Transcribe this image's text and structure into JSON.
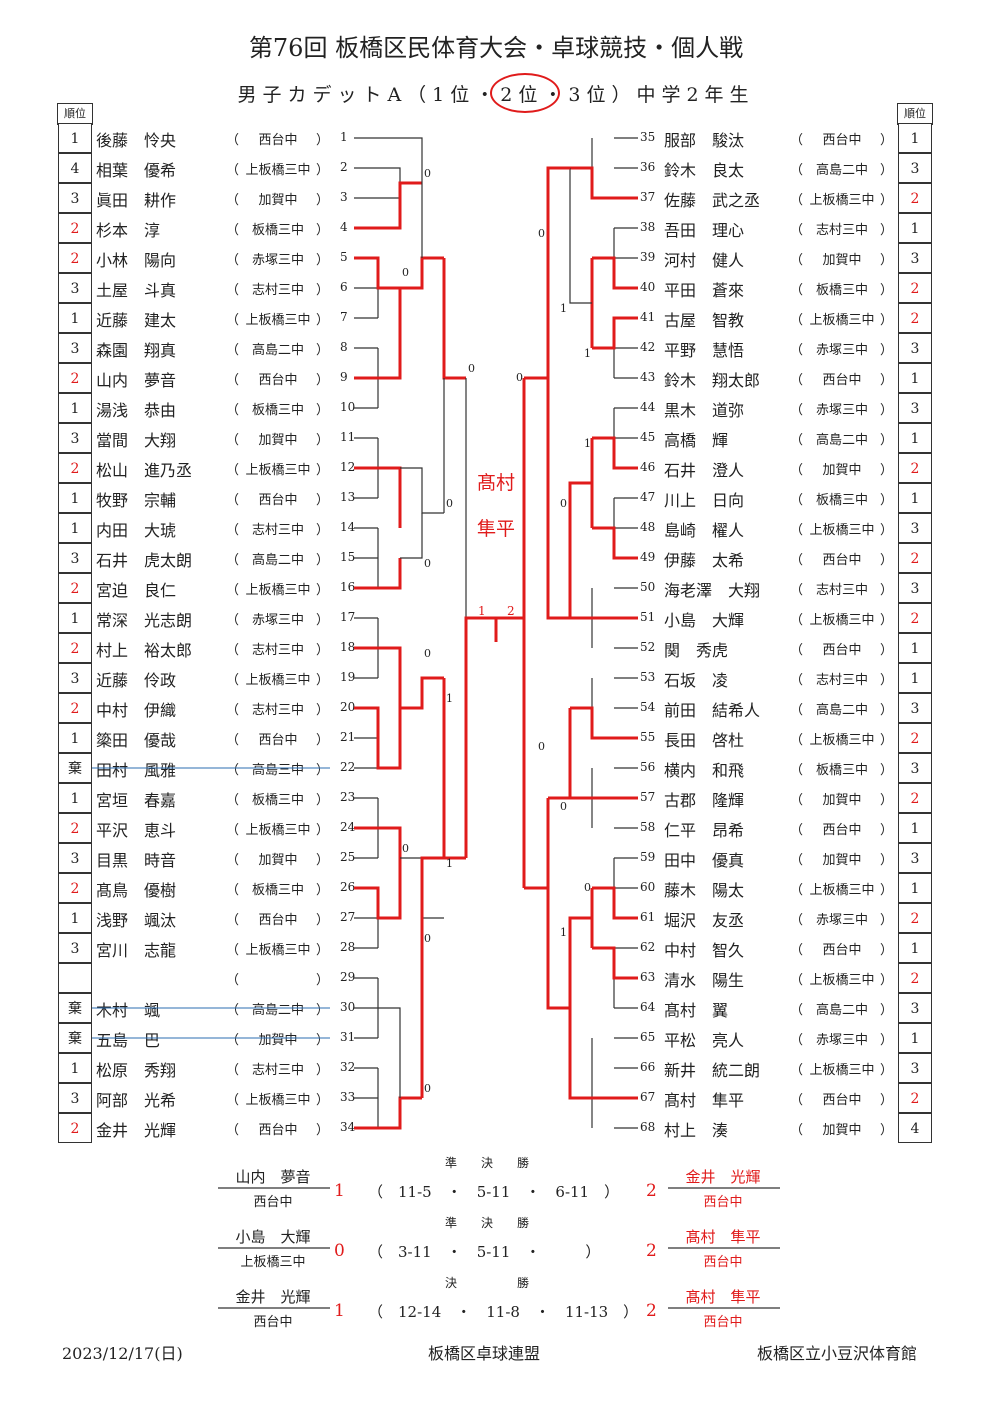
{
  "title": "第76回 板橋区民体育大会・卓球競技・個人戦",
  "subtitle": "男子カデットA（1位・2位・3位）中学2年生",
  "rank_header": "順位",
  "left_players": [
    {
      "num": "1",
      "name": "後藤　怜央",
      "school": "西台中",
      "rank": "1"
    },
    {
      "num": "2",
      "name": "相葉　優希",
      "school": "上板橋三中",
      "rank": "4"
    },
    {
      "num": "3",
      "name": "眞田　耕作",
      "school": "加賀中",
      "rank": "3"
    },
    {
      "num": "4",
      "name": "杉本　淳",
      "school": "板橋三中",
      "rank": "2"
    },
    {
      "num": "5",
      "name": "小林　陽向",
      "school": "赤塚三中",
      "rank": "2"
    },
    {
      "num": "6",
      "name": "土屋　斗真",
      "school": "志村三中",
      "rank": "3"
    },
    {
      "num": "7",
      "name": "近藤　建太",
      "school": "上板橋三中",
      "rank": "1"
    },
    {
      "num": "8",
      "name": "森園　翔真",
      "school": "高島二中",
      "rank": "3"
    },
    {
      "num": "9",
      "name": "山内　夢音",
      "school": "西台中",
      "rank": "2"
    },
    {
      "num": "10",
      "name": "湯浅　恭由",
      "school": "板橋三中",
      "rank": "1"
    },
    {
      "num": "11",
      "name": "當間　大翔",
      "school": "加賀中",
      "rank": "3"
    },
    {
      "num": "12",
      "name": "松山　進乃丞",
      "school": "上板橋三中",
      "rank": "2"
    },
    {
      "num": "13",
      "name": "牧野　宗輔",
      "school": "西台中",
      "rank": "1"
    },
    {
      "num": "14",
      "name": "内田　大琥",
      "school": "志村三中",
      "rank": "1"
    },
    {
      "num": "15",
      "name": "石井　虎太朗",
      "school": "高島二中",
      "rank": "3"
    },
    {
      "num": "16",
      "name": "宮迫　良仁",
      "school": "上板橋三中",
      "rank": "2"
    },
    {
      "num": "17",
      "name": "常深　光志朗",
      "school": "赤塚三中",
      "rank": "1"
    },
    {
      "num": "18",
      "name": "村上　裕太郎",
      "school": "志村三中",
      "rank": "2"
    },
    {
      "num": "19",
      "name": "近藤　伶政",
      "school": "上板橋三中",
      "rank": "3"
    },
    {
      "num": "20",
      "name": "中村　伊織",
      "school": "志村三中",
      "rank": "2"
    },
    {
      "num": "21",
      "name": "簗田　優哉",
      "school": "西台中",
      "rank": "1"
    },
    {
      "num": "22",
      "name": "田村　風雅",
      "school": "高島三中",
      "rank": "棄"
    },
    {
      "num": "23",
      "name": "宮垣　春嘉",
      "school": "板橋三中",
      "rank": "1"
    },
    {
      "num": "24",
      "name": "平沢　恵斗",
      "school": "上板橋三中",
      "rank": "2"
    },
    {
      "num": "25",
      "name": "目黒　時音",
      "school": "加賀中",
      "rank": "3"
    },
    {
      "num": "26",
      "name": "髙鳥　優樹",
      "school": "板橋三中",
      "rank": "2"
    },
    {
      "num": "27",
      "name": "浅野　颯汰",
      "school": "西台中",
      "rank": "1"
    },
    {
      "num": "28",
      "name": "宮川　志龍",
      "school": "上板橋三中",
      "rank": "3"
    },
    {
      "num": "29",
      "name": "",
      "school": "",
      "rank": ""
    },
    {
      "num": "30",
      "name": "木村　颯",
      "school": "高島二中",
      "rank": "棄"
    },
    {
      "num": "31",
      "name": "五島　巴",
      "school": "加賀中",
      "rank": "棄"
    },
    {
      "num": "32",
      "name": "松原　秀翔",
      "school": "志村三中",
      "rank": "1"
    },
    {
      "num": "33",
      "name": "阿部　光希",
      "school": "上板橋三中",
      "rank": "3"
    },
    {
      "num": "34",
      "name": "金井　光輝",
      "school": "西台中",
      "rank": "2"
    }
  ],
  "right_players": [
    {
      "num": "35",
      "name": "服部　駿汰",
      "school": "西台中",
      "rank": "1"
    },
    {
      "num": "36",
      "name": "鈴木　良太",
      "school": "高島二中",
      "rank": "3"
    },
    {
      "num": "37",
      "name": "佐藤　武之丞",
      "school": "上板橋三中",
      "rank": "2"
    },
    {
      "num": "38",
      "name": "吾田　理心",
      "school": "志村三中",
      "rank": "1"
    },
    {
      "num": "39",
      "name": "河村　健人",
      "school": "加賀中",
      "rank": "3"
    },
    {
      "num": "40",
      "name": "平田　蒼來",
      "school": "板橋三中",
      "rank": "2"
    },
    {
      "num": "41",
      "name": "古屋　智教",
      "school": "上板橋三中",
      "rank": "2"
    },
    {
      "num": "42",
      "name": "平野　慧悟",
      "school": "赤塚三中",
      "rank": "3"
    },
    {
      "num": "43",
      "name": "鈴木　翔太郎",
      "school": "西台中",
      "rank": "1"
    },
    {
      "num": "44",
      "name": "黒木　道弥",
      "school": "赤塚三中",
      "rank": "3"
    },
    {
      "num": "45",
      "name": "高橋　輝",
      "school": "高島二中",
      "rank": "1"
    },
    {
      "num": "46",
      "name": "石井　澄人",
      "school": "加賀中",
      "rank": "2"
    },
    {
      "num": "47",
      "name": "川上　日向",
      "school": "板橋三中",
      "rank": "1"
    },
    {
      "num": "48",
      "name": "島崎　櫂人",
      "school": "上板橋三中",
      "rank": "3"
    },
    {
      "num": "49",
      "name": "伊藤　太希",
      "school": "西台中",
      "rank": "2"
    },
    {
      "num": "50",
      "name": "海老澤　大翔",
      "school": "志村三中",
      "rank": "3"
    },
    {
      "num": "51",
      "name": "小島　大輝",
      "school": "上板橋三中",
      "rank": "2"
    },
    {
      "num": "52",
      "name": "関　秀虎",
      "school": "西台中",
      "rank": "1"
    },
    {
      "num": "53",
      "name": "石坂　凌",
      "school": "志村三中",
      "rank": "1"
    },
    {
      "num": "54",
      "name": "前田　結希人",
      "school": "高島二中",
      "rank": "3"
    },
    {
      "num": "55",
      "name": "長田　啓杜",
      "school": "上板橋三中",
      "rank": "2"
    },
    {
      "num": "56",
      "name": "横内　和飛",
      "school": "板橋三中",
      "rank": "3"
    },
    {
      "num": "57",
      "name": "古郡　隆輝",
      "school": "加賀中",
      "rank": "2"
    },
    {
      "num": "58",
      "name": "仁平　昂希",
      "school": "西台中",
      "rank": "1"
    },
    {
      "num": "59",
      "name": "田中　優真",
      "school": "加賀中",
      "rank": "3"
    },
    {
      "num": "60",
      "name": "藤木　陽太",
      "school": "上板橋三中",
      "rank": "1"
    },
    {
      "num": "61",
      "name": "堀沢　友丞",
      "school": "赤塚三中",
      "rank": "2"
    },
    {
      "num": "62",
      "name": "中村　智久",
      "school": "西台中",
      "rank": "1"
    },
    {
      "num": "63",
      "name": "清水　陽生",
      "school": "上板橋三中",
      "rank": "2"
    },
    {
      "num": "64",
      "name": "髙村　翼",
      "school": "高島二中",
      "rank": "3"
    },
    {
      "num": "65",
      "name": "平松　亮人",
      "school": "赤塚三中",
      "rank": "1"
    },
    {
      "num": "66",
      "name": "新井　統二朗",
      "school": "上板橋三中",
      "rank": "3"
    },
    {
      "num": "67",
      "name": "髙村　隼平",
      "school": "西台中",
      "rank": "2"
    },
    {
      "num": "68",
      "name": "村上　湊",
      "school": "加賀中",
      "rank": "4"
    }
  ],
  "champion": "髙村\n隼平",
  "final_scores": {
    "left": "1",
    "right": "2"
  },
  "matches": [
    {
      "label": "準　　決　　勝",
      "left_name": "山内　夢音",
      "left_school": "西台中",
      "left_score": "1",
      "games": "（　11-5　・　5-11　・　6-11　）",
      "right_score": "2",
      "right_name": "金井　光輝",
      "right_school": "西台中"
    },
    {
      "label": "準　　決　　勝",
      "left_name": "小島　大輝",
      "left_school": "上板橋三中",
      "left_score": "0",
      "games": "（　3-11　・　5-11　・　　　）",
      "right_score": "2",
      "right_name": "髙村　隼平",
      "right_school": "西台中"
    },
    {
      "label": "決　　　　　勝",
      "left_name": "金井　光輝",
      "left_school": "西台中",
      "left_score": "1",
      "games": "（　12-14　・　11-8　・　11-13　）",
      "right_score": "2",
      "right_name": "髙村　隼平",
      "right_school": "西台中"
    }
  ],
  "bracket_scores_left": [
    "0",
    "0",
    "0",
    "0",
    "0",
    "0",
    "1",
    "0",
    "0",
    "1",
    "0"
  ],
  "bracket_scores_right": [
    "0",
    "1",
    "1",
    "0",
    "1",
    "0",
    "0",
    "0",
    "0",
    "1"
  ],
  "footer": {
    "date": "2023/12/17(日)",
    "org": "板橋区卓球連盟",
    "venue": "板橋区立小豆沢体育館"
  },
  "colors": {
    "red": "#e01b1b",
    "line": "#333333",
    "strike": "#2b6cb0"
  }
}
